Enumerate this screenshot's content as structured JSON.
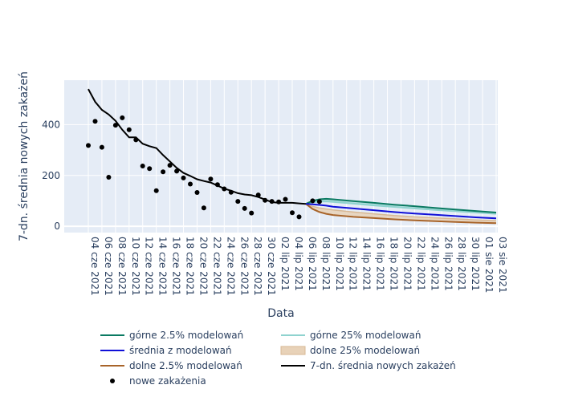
{
  "chart_data": {
    "type": "line",
    "xlabel": "Data",
    "ylabel": "7-dn. średnia nowych zakażeń",
    "ylim": [
      -25,
      575
    ],
    "x_start": "2021-06-04",
    "x_end": "2021-08-03",
    "grid": true,
    "legend_position": "bottom",
    "x_tick_labels": [
      "04 cze 2021",
      "06 cze 2021",
      "08 cze 2021",
      "10 cze 2021",
      "12 cze 2021",
      "14 cze 2021",
      "16 cze 2021",
      "18 cze 2021",
      "20 cze 2021",
      "22 cze 2021",
      "24 cze 2021",
      "26 cze 2021",
      "28 cze 2021",
      "30 cze 2021",
      "02 lip 2021",
      "04 lip 2021",
      "06 lip 2021",
      "08 lip 2021",
      "10 lip 2021",
      "12 lip 2021",
      "14 lip 2021",
      "16 lip 2021",
      "18 lip 2021",
      "20 lip 2021",
      "22 lip 2021",
      "24 lip 2021",
      "26 lip 2021",
      "28 lip 2021",
      "30 lip 2021",
      "01 sie 2021",
      "03 sie 2021"
    ],
    "y_ticks": [
      0,
      200,
      400
    ],
    "y_tick_labels": [
      "0",
      "200",
      "400"
    ],
    "colors": {
      "upper_2_5": "#0b7a62",
      "upper_25": "#8fd3cf",
      "mean": "#1010d8",
      "lower_25": "#e8d2b8",
      "lower_2_5": "#a8642a",
      "rolling_avg": "#000000",
      "cases": "#000000"
    },
    "legend": [
      {
        "key": "upper_2_5",
        "label": "górne 2.5% modelowań",
        "kind": "line"
      },
      {
        "key": "upper_25",
        "label": "górne 25% modelowań",
        "kind": "line"
      },
      {
        "key": "mean",
        "label": "średnia z modelowań",
        "kind": "line"
      },
      {
        "key": "lower_25",
        "label": "dolne 25% modelowań",
        "kind": "band"
      },
      {
        "key": "lower_2_5",
        "label": "dolne 2.5% modelowań",
        "kind": "line"
      },
      {
        "key": "rolling_avg",
        "label": "7-dn. średnia nowych zakażeń",
        "kind": "line"
      },
      {
        "key": "cases",
        "label": "nowe zakażenia",
        "kind": "marker"
      }
    ],
    "cases": {
      "x": [
        "2021-06-04",
        "2021-06-05",
        "2021-06-06",
        "2021-06-07",
        "2021-06-08",
        "2021-06-09",
        "2021-06-10",
        "2021-06-11",
        "2021-06-12",
        "2021-06-13",
        "2021-06-14",
        "2021-06-15",
        "2021-06-16",
        "2021-06-17",
        "2021-06-18",
        "2021-06-19",
        "2021-06-20",
        "2021-06-21",
        "2021-06-22",
        "2021-06-23",
        "2021-06-24",
        "2021-06-25",
        "2021-06-26",
        "2021-06-27",
        "2021-06-28",
        "2021-06-29",
        "2021-06-30",
        "2021-07-01",
        "2021-07-02",
        "2021-07-03",
        "2021-07-04",
        "2021-07-05",
        "2021-07-07",
        "2021-07-08"
      ],
      "y": [
        318,
        413,
        311,
        193,
        398,
        427,
        380,
        340,
        237,
        227,
        140,
        214,
        240,
        217,
        190,
        166,
        133,
        72,
        186,
        164,
        147,
        134,
        98,
        70,
        52,
        123,
        102,
        98,
        96,
        106,
        53,
        37,
        100,
        97
      ]
    },
    "rolling_avg": {
      "x": [
        "2021-06-04",
        "2021-06-05",
        "2021-06-06",
        "2021-06-07",
        "2021-06-08",
        "2021-06-09",
        "2021-06-10",
        "2021-06-11",
        "2021-06-12",
        "2021-06-13",
        "2021-06-14",
        "2021-06-15",
        "2021-06-16",
        "2021-06-17",
        "2021-06-18",
        "2021-06-19",
        "2021-06-20",
        "2021-06-21",
        "2021-06-22",
        "2021-06-23",
        "2021-06-24",
        "2021-06-25",
        "2021-06-26",
        "2021-06-27",
        "2021-06-28",
        "2021-06-29",
        "2021-06-30",
        "2021-07-01",
        "2021-07-02",
        "2021-07-03",
        "2021-07-04",
        "2021-07-05",
        "2021-07-06"
      ],
      "y": [
        540,
        490,
        458,
        440,
        415,
        380,
        350,
        350,
        325,
        315,
        308,
        280,
        255,
        230,
        210,
        198,
        185,
        178,
        172,
        160,
        148,
        140,
        130,
        125,
        122,
        115,
        105,
        95,
        92,
        92,
        92,
        90,
        88
      ]
    },
    "model_x": [
      "2021-07-06",
      "2021-07-07",
      "2021-07-08",
      "2021-07-09",
      "2021-07-10",
      "2021-07-13",
      "2021-07-16",
      "2021-07-19",
      "2021-07-22",
      "2021-07-25",
      "2021-07-28",
      "2021-07-31",
      "2021-08-03"
    ],
    "upper_2_5": [
      88,
      100,
      106,
      108,
      106,
      99,
      92,
      85,
      79,
      72,
      66,
      60,
      54
    ],
    "upper_25": [
      88,
      94,
      97,
      98,
      96,
      89,
      82,
      76,
      70,
      64,
      59,
      54,
      49
    ],
    "mean": [
      88,
      86,
      84,
      81,
      77,
      70,
      63,
      56,
      50,
      45,
      40,
      35,
      31
    ],
    "lower_25": [
      88,
      78,
      72,
      68,
      64,
      56,
      49,
      42,
      37,
      33,
      29,
      25,
      22
    ],
    "lower_2_5": [
      88,
      68,
      56,
      49,
      44,
      37,
      32,
      27,
      23,
      20,
      17,
      14,
      12
    ]
  }
}
